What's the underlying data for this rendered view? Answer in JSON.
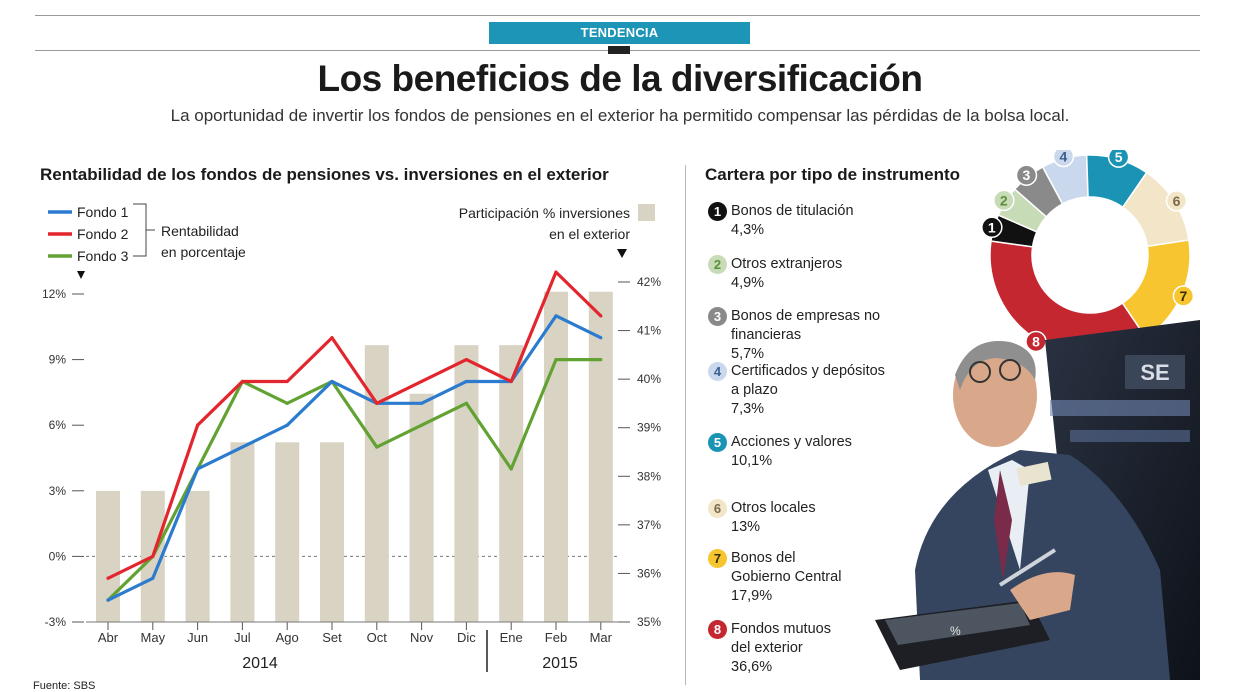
{
  "header": {
    "tag": "TENDENCIA",
    "title": "Los beneficios de la diversificación",
    "subtitle": "La oportunidad de invertir los fondos de pensiones en el exterior ha permitido compensar las pérdidas de la bolsa local."
  },
  "left_section_title": "Rentabilidad de los fondos de pensiones vs. inversiones en el exterior",
  "right_section_title": "Cartera por tipo de instrumento",
  "source": "Fuente: SBS",
  "colors": {
    "fondo1": "#2b7bcf",
    "fondo2": "#e3262d",
    "fondo3": "#62a233",
    "bars": "#d8d3c3",
    "tag": "#1c95b6"
  },
  "chart_data": [
    {
      "type": "bar+line",
      "title": "Rentabilidad de los fondos de pensiones vs. inversiones en el exterior",
      "categories": [
        "Abr",
        "May",
        "Jun",
        "Jul",
        "Ago",
        "Set",
        "Oct",
        "Nov",
        "Dic",
        "Ene",
        "Feb",
        "Mar"
      ],
      "years": [
        {
          "label": "2014"
        },
        {
          "label": "2015"
        }
      ],
      "left_axis": {
        "label": "Rentabilidad en porcentaje",
        "ylim": [
          -3,
          12
        ],
        "ticks": [
          "-3%",
          "0%",
          "3%",
          "6%",
          "9%",
          "12%"
        ],
        "tick_values": [
          -3,
          0,
          3,
          6,
          9,
          12
        ]
      },
      "right_axis": {
        "label_line1": "Participación % inversiones",
        "label_line2": "en el exterior",
        "ylim": [
          35,
          42
        ],
        "ticks": [
          "35%",
          "36%",
          "37%",
          "38%",
          "39%",
          "40%",
          "41%",
          "42%"
        ],
        "tick_values": [
          35,
          36,
          37,
          38,
          39,
          40,
          41,
          42
        ]
      },
      "bars": {
        "name": "Participación % inversiones en el exterior",
        "axis": "right",
        "values": [
          37.7,
          37.7,
          37.7,
          38.7,
          38.7,
          38.7,
          40.7,
          39.7,
          40.7,
          40.7,
          41.8,
          41.8
        ]
      },
      "series": [
        {
          "name": "Fondo 1",
          "axis": "left",
          "values": [
            -2,
            -1,
            4,
            5,
            6,
            8,
            7,
            7,
            8,
            8,
            11,
            10
          ]
        },
        {
          "name": "Fondo 2",
          "axis": "left",
          "values": [
            -1,
            0,
            6,
            8,
            8,
            10,
            7,
            8,
            9,
            8,
            13,
            11
          ]
        },
        {
          "name": "Fondo 3",
          "axis": "left",
          "values": [
            -2,
            0,
            null,
            8,
            7,
            8,
            5,
            6,
            7,
            4,
            9,
            9
          ]
        }
      ]
    },
    {
      "type": "pie",
      "title": "Cartera por tipo de instrumento",
      "slices": [
        {
          "n": "1",
          "label": "Bonos de titulación",
          "value": 4.3,
          "text": "4,3%",
          "color": "#111111",
          "ink": "#ffffff"
        },
        {
          "n": "2",
          "label": "Otros extranjeros",
          "value": 4.9,
          "text": "4,9%",
          "color": "#c7dcb6",
          "ink": "#5b8f3a"
        },
        {
          "n": "3",
          "label": "Bonos de empresas no financieras",
          "value": 5.7,
          "text": "5,7%",
          "color": "#8a8a8a",
          "ink": "#ffffff"
        },
        {
          "n": "4",
          "label": "Certificados y depósitos a plazo",
          "value": 7.3,
          "text": "7,3%",
          "color": "#c9d8ec",
          "ink": "#3a5f8f"
        },
        {
          "n": "5",
          "label": "Acciones y valores",
          "value": 10.1,
          "text": "10,1%",
          "color": "#1a93b4",
          "ink": "#ffffff"
        },
        {
          "n": "6",
          "label": "Otros locales",
          "value": 13,
          "text": "13%",
          "color": "#f3e5c8",
          "ink": "#7a6a4a"
        },
        {
          "n": "7",
          "label": "Bonos del Gobierno Central",
          "value": 17.9,
          "text": "17,9%",
          "color": "#f7c52f",
          "ink": "#3a2d00"
        },
        {
          "n": "8",
          "label": "Fondos mutuos del exterior",
          "value": 36.6,
          "text": "36,6%",
          "color": "#c4272f",
          "ink": "#ffffff"
        }
      ]
    }
  ],
  "category_text": [
    {
      "line1": "Bonos de titulación",
      "line2": ""
    },
    {
      "line1": "Otros extranjeros",
      "line2": ""
    },
    {
      "line1": "Bonos de empresas no financieras",
      "line2": ""
    },
    {
      "line1": "Certificados y depósitos",
      "line2": "a plazo"
    },
    {
      "line1": "Acciones y valores",
      "line2": ""
    },
    {
      "line1": "Otros locales",
      "line2": ""
    },
    {
      "line1": "Bonos del",
      "line2": "Gobierno Central"
    },
    {
      "line1": "Fondos mutuos",
      "line2": "del exterior"
    }
  ],
  "photo_badge": "SE",
  "photo_calc": "%"
}
